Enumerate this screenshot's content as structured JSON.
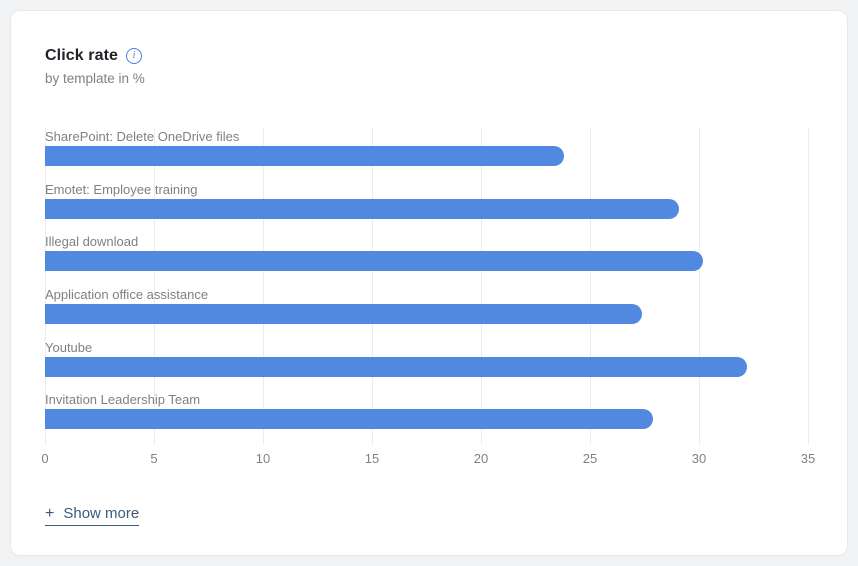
{
  "card": {
    "title": "Click rate",
    "subtitle": "by template in %",
    "show_more": {
      "icon": "+",
      "label": "Show more"
    }
  },
  "icons": {
    "info_icon_glyph": "i"
  },
  "colors": {
    "bar": "#5289e0",
    "page_background": "#f1f3f4",
    "card_background": "#ffffff",
    "card_border": "#e7e9ec",
    "title_text": "#1f2328",
    "muted_text": "#7d8186",
    "gridline": "#ececec",
    "link": "#3d5a78",
    "info_icon": "#4e7fe1"
  },
  "chart_data": {
    "type": "bar",
    "orientation": "horizontal",
    "title": "Click rate",
    "subtitle": "by template in %",
    "categories": [
      "SharePoint: Delete OneDrive files",
      "Emotet: Employee training",
      "Illegal download",
      "Application office assistance",
      "Youtube",
      "Invitation Leadership Team"
    ],
    "values": [
      23.8,
      29.1,
      30.2,
      27.4,
      32.2,
      27.9
    ],
    "xlabel": "",
    "ylabel": "",
    "xlim": [
      0,
      35
    ],
    "xticks": [
      0,
      5,
      10,
      15,
      20,
      25,
      30,
      35
    ],
    "grid": true,
    "legend": false
  }
}
